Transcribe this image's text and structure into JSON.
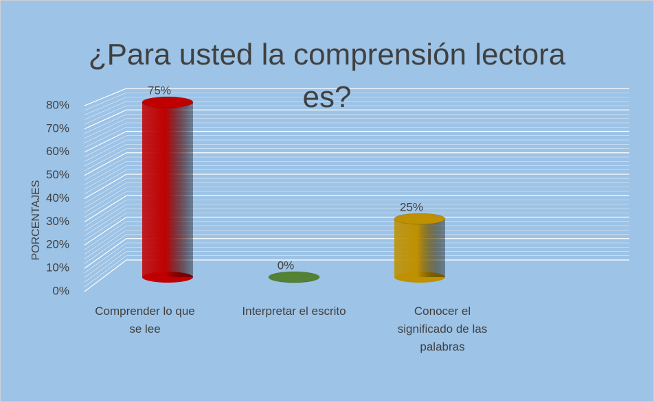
{
  "chart_data": {
    "type": "bar3d",
    "title": "¿Para usted la comprensión lectora es?",
    "y_label": "PORCENTAJES",
    "categories": [
      "Comprender lo que se lee",
      "Interpretar el escrito",
      "Conocer el significado de las palabras"
    ],
    "values": [
      75,
      0,
      25
    ],
    "value_labels": [
      "75%",
      "0%",
      "25%"
    ],
    "colors": [
      "#c00000",
      "#548235",
      "#bf9000"
    ],
    "ylim": [
      0,
      80
    ],
    "yticks": [
      {
        "value": 0,
        "label": "0%"
      },
      {
        "value": 10,
        "label": "10%"
      },
      {
        "value": 20,
        "label": "20%"
      },
      {
        "value": 30,
        "label": "30%"
      },
      {
        "value": 40,
        "label": "40%"
      },
      {
        "value": 50,
        "label": "50%"
      },
      {
        "value": 60,
        "label": "60%"
      },
      {
        "value": 70,
        "label": "70%"
      },
      {
        "value": 80,
        "label": "80%"
      }
    ],
    "grid": true
  }
}
